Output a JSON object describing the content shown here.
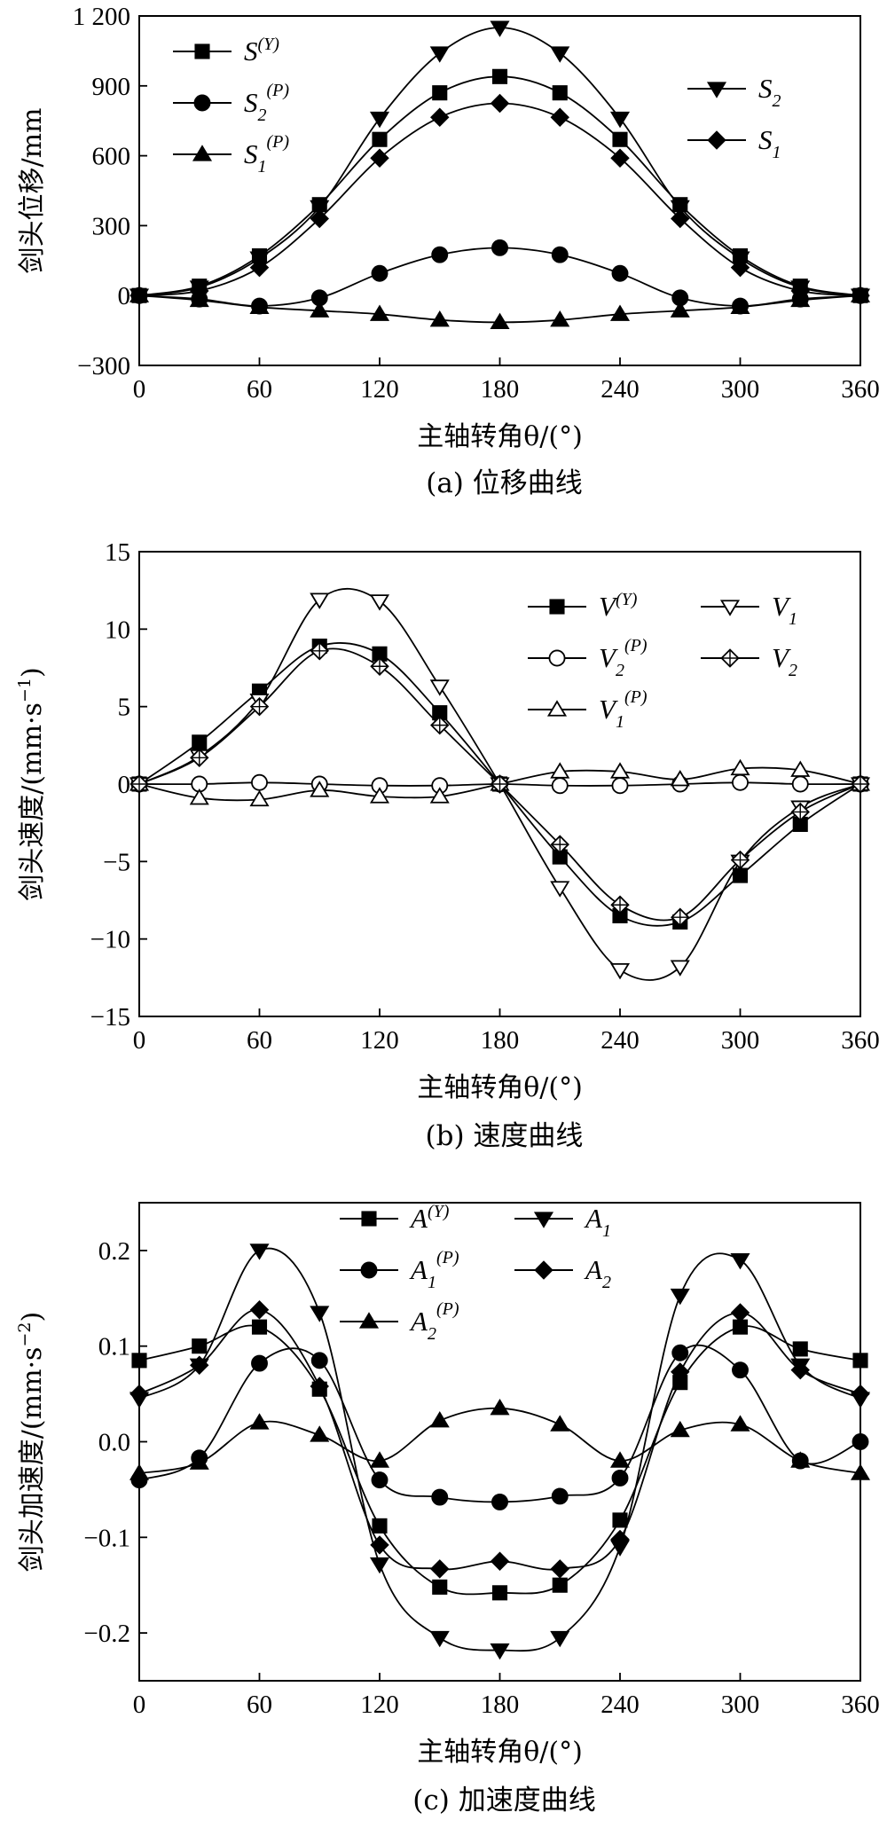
{
  "chart_data": [
    {
      "id": "a",
      "type": "line",
      "caption": "(a) 位移曲线",
      "xlabel": "主轴转角θ/(°)",
      "ylabel": "剑头位移/mm",
      "xlim": [
        0,
        360
      ],
      "ylim": [
        -300,
        1200
      ],
      "xticks": [
        0,
        60,
        120,
        180,
        240,
        300,
        360
      ],
      "yticks": [
        -300,
        0,
        300,
        600,
        900,
        1200
      ],
      "xtick_labels": [
        "0",
        "60",
        "120",
        "180",
        "240",
        "300",
        "360"
      ],
      "ytick_labels": [
        "−300",
        "0",
        "300",
        "600",
        "900",
        "1 200"
      ],
      "x": [
        0,
        30,
        60,
        90,
        120,
        150,
        180,
        210,
        240,
        270,
        300,
        330,
        360
      ],
      "series": [
        {
          "key": "SY",
          "name": "S",
          "sup": "(Y)",
          "sub": "",
          "marker": "square",
          "filled": true,
          "values": [
            0,
            40,
            170,
            390,
            670,
            870,
            940,
            870,
            670,
            390,
            170,
            40,
            0
          ]
        },
        {
          "key": "S2P",
          "name": "S",
          "sup": "(P)",
          "sub": "2",
          "marker": "circle",
          "filled": true,
          "values": [
            0,
            -15,
            -45,
            -10,
            95,
            175,
            205,
            175,
            95,
            -10,
            -45,
            -15,
            0
          ]
        },
        {
          "key": "S1P",
          "name": "S",
          "sup": "(P)",
          "sub": "1",
          "marker": "triangle-up",
          "filled": true,
          "values": [
            0,
            -20,
            -50,
            -65,
            -80,
            -105,
            -115,
            -105,
            -80,
            -65,
            -50,
            -20,
            0
          ]
        },
        {
          "key": "S2",
          "name": "S",
          "sup": "",
          "sub": "2",
          "marker": "triangle-down",
          "filled": true,
          "values": [
            0,
            35,
            160,
            380,
            760,
            1040,
            1150,
            1040,
            760,
            380,
            160,
            35,
            0
          ]
        },
        {
          "key": "S1",
          "name": "S",
          "sup": "",
          "sub": "1",
          "marker": "diamond",
          "filled": true,
          "values": [
            0,
            20,
            120,
            330,
            590,
            765,
            825,
            765,
            590,
            330,
            120,
            20,
            0
          ]
        }
      ],
      "legend_groups": [
        [
          "SY",
          "S2P",
          "S1P"
        ],
        [
          "S2",
          "S1"
        ]
      ]
    },
    {
      "id": "b",
      "type": "line",
      "caption": "(b) 速度曲线",
      "xlabel": "主轴转角θ/(°)",
      "ylabel": "剑头速度/(mm·s",
      "ylabel_sup": "−1",
      "ylabel_end": ")",
      "xlim": [
        0,
        360
      ],
      "ylim": [
        -15,
        15
      ],
      "xticks": [
        0,
        60,
        120,
        180,
        240,
        300,
        360
      ],
      "yticks": [
        -15,
        -10,
        -5,
        0,
        5,
        10,
        15
      ],
      "xtick_labels": [
        "0",
        "60",
        "120",
        "180",
        "240",
        "300",
        "360"
      ],
      "ytick_labels": [
        "−15",
        "−10",
        "−5",
        "0",
        "5",
        "10",
        "15"
      ],
      "x": [
        0,
        30,
        60,
        90,
        120,
        150,
        180,
        210,
        240,
        270,
        300,
        330,
        360
      ],
      "series": [
        {
          "key": "VY",
          "name": "V",
          "sup": "(Y)",
          "sub": "",
          "marker": "square",
          "filled": true,
          "values": [
            0,
            2.7,
            6.0,
            8.9,
            8.4,
            4.6,
            0,
            -4.7,
            -8.5,
            -8.9,
            -5.9,
            -2.6,
            0
          ]
        },
        {
          "key": "V2P",
          "name": "V",
          "sup": "(P)",
          "sub": "2",
          "marker": "circle",
          "filled": false,
          "values": [
            0,
            0.0,
            0.1,
            0.0,
            -0.1,
            -0.1,
            0,
            -0.1,
            -0.1,
            0.0,
            0.1,
            0.0,
            0
          ]
        },
        {
          "key": "V1P",
          "name": "V",
          "sup": "(P)",
          "sub": "1",
          "marker": "triangle-up",
          "filled": false,
          "values": [
            0,
            -0.9,
            -1.0,
            -0.4,
            -0.8,
            -0.8,
            0,
            0.8,
            0.8,
            0.3,
            1.0,
            0.9,
            0
          ]
        },
        {
          "key": "V1",
          "name": "V",
          "sup": "",
          "sub": "1",
          "marker": "triangle-down",
          "filled": false,
          "values": [
            0,
            1.8,
            5.4,
            11.9,
            11.8,
            6.3,
            0,
            -6.7,
            -12.0,
            -11.8,
            -5.0,
            -1.5,
            0
          ]
        },
        {
          "key": "V2",
          "name": "V",
          "sup": "",
          "sub": "2",
          "marker": "diamond-cross",
          "filled": false,
          "values": [
            0,
            1.7,
            5.0,
            8.6,
            7.6,
            3.8,
            0,
            -3.9,
            -7.8,
            -8.6,
            -4.9,
            -1.8,
            0
          ]
        }
      ],
      "legend_groups": [
        [
          "VY",
          "V2P",
          "V1P"
        ],
        [
          "V1",
          "V2"
        ]
      ]
    },
    {
      "id": "c",
      "type": "line",
      "caption": "(c) 加速度曲线",
      "xlabel": "主轴转角θ/(°)",
      "ylabel": "剑头加速度/(mm·s",
      "ylabel_sup": "−2",
      "ylabel_end": ")",
      "xlim": [
        0,
        360
      ],
      "ylim": [
        -0.25,
        0.25
      ],
      "xticks": [
        0,
        60,
        120,
        180,
        240,
        300,
        360
      ],
      "yticks": [
        -0.2,
        -0.1,
        0.0,
        0.1,
        0.2
      ],
      "xtick_labels": [
        "0",
        "60",
        "120",
        "180",
        "240",
        "300",
        "360"
      ],
      "ytick_labels": [
        "−0.2",
        "−0.1",
        "0.0",
        "0.1",
        "0.2"
      ],
      "x": [
        0,
        30,
        60,
        90,
        120,
        150,
        180,
        210,
        240,
        270,
        300,
        330,
        360
      ],
      "series": [
        {
          "key": "AY",
          "name": "A",
          "sup": "(Y)",
          "sub": "",
          "marker": "square",
          "filled": true,
          "values": [
            0.085,
            0.1,
            0.12,
            0.055,
            -0.088,
            -0.152,
            -0.158,
            -0.15,
            -0.082,
            0.062,
            0.12,
            0.097,
            0.085
          ]
        },
        {
          "key": "A1P",
          "name": "A",
          "sup": "(P)",
          "sub": "1",
          "marker": "circle",
          "filled": true,
          "values": [
            -0.04,
            -0.017,
            0.082,
            0.085,
            -0.04,
            -0.058,
            -0.063,
            -0.057,
            -0.038,
            0.093,
            0.075,
            -0.02,
            0.0
          ]
        },
        {
          "key": "A2P",
          "name": "A",
          "sup": "(P)",
          "sub": "2",
          "marker": "triangle-up",
          "filled": true,
          "values": [
            -0.033,
            -0.022,
            0.02,
            0.007,
            -0.02,
            0.022,
            0.035,
            0.018,
            -0.02,
            0.012,
            0.018,
            -0.02,
            -0.033
          ]
        },
        {
          "key": "A1",
          "name": "A",
          "sup": "",
          "sub": "1",
          "marker": "triangle-down",
          "filled": true,
          "values": [
            0.045,
            0.08,
            0.2,
            0.135,
            -0.128,
            -0.205,
            -0.218,
            -0.205,
            -0.11,
            0.153,
            0.19,
            0.08,
            0.045
          ]
        },
        {
          "key": "A2",
          "name": "A",
          "sup": "",
          "sub": "2",
          "marker": "diamond",
          "filled": true,
          "values": [
            0.05,
            0.08,
            0.138,
            0.058,
            -0.108,
            -0.133,
            -0.125,
            -0.133,
            -0.102,
            0.073,
            0.135,
            0.075,
            0.05
          ]
        }
      ],
      "legend_groups": [
        [
          "AY",
          "A1P",
          "A2P"
        ],
        [
          "A1",
          "A2"
        ]
      ]
    }
  ]
}
